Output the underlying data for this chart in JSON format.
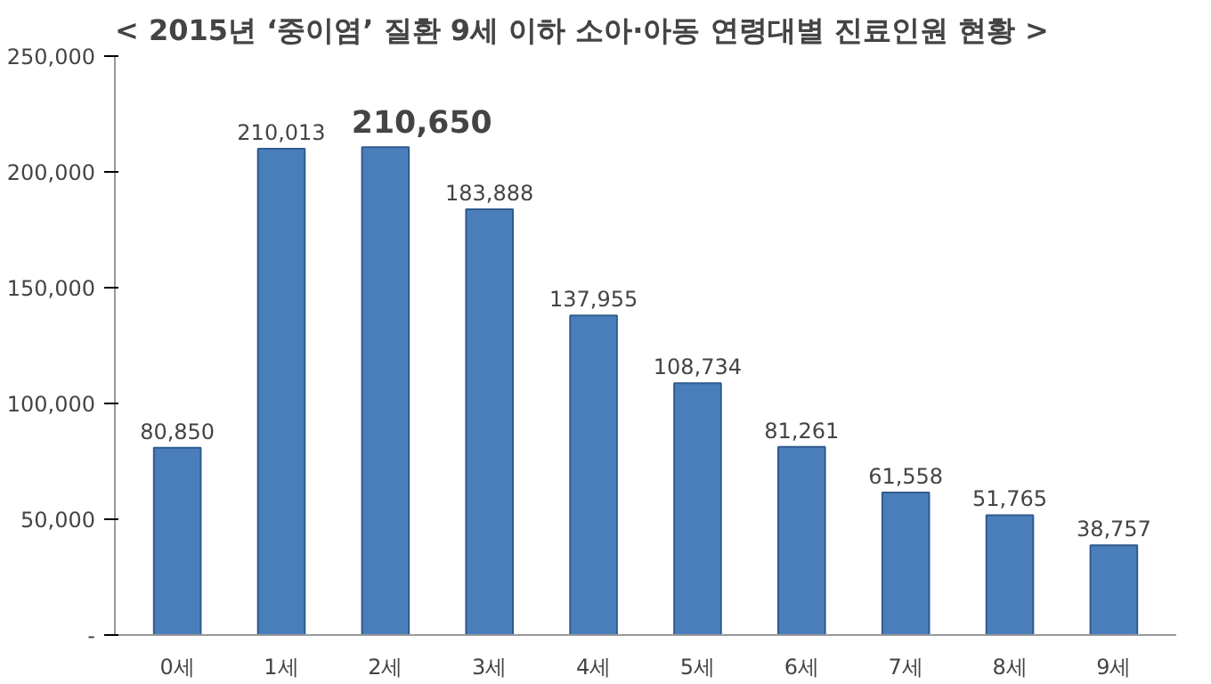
{
  "chart_data": {
    "type": "bar",
    "title": "< 2015년 ‘중이염’ 질환 9세 이하 소아·아동 연령대별 진료인원 현황 >",
    "categories": [
      "0세",
      "1세",
      "2세",
      "3세",
      "4세",
      "5세",
      "6세",
      "7세",
      "8세",
      "9세"
    ],
    "values": [
      80850,
      210013,
      210650,
      183888,
      137955,
      108734,
      81261,
      61558,
      51765,
      38757
    ],
    "value_labels": [
      "80,850",
      "210,013",
      "210,650",
      "183,888",
      "137,955",
      "108,734",
      "81,261",
      "61,558",
      "51,765",
      "38,757"
    ],
    "color": "#4a7ebb",
    "ylim": [
      0,
      250000
    ],
    "yticks": [
      {
        "value": 0,
        "label": "-"
      },
      {
        "value": 50000,
        "label": "50,000"
      },
      {
        "value": 100000,
        "label": "100,000"
      },
      {
        "value": 150000,
        "label": "150,000"
      },
      {
        "value": 200000,
        "label": "200,000"
      },
      {
        "value": 250000,
        "label": "250,000"
      }
    ],
    "grid": false
  }
}
